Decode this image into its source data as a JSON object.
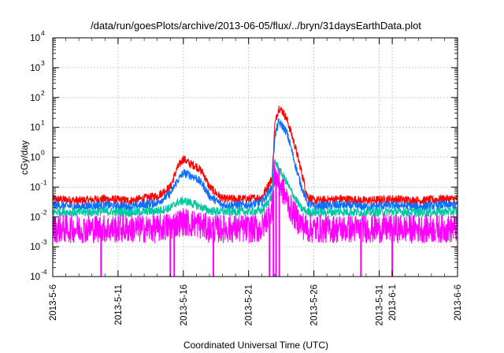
{
  "chart_data": {
    "type": "line",
    "title": "/data/run/goesPlots/archive/2013-06-05/flux/../bryn/31daysEarthData.plot",
    "xlabel": "Coordinated Universal Time (UTC)",
    "ylabel": "cGy/day",
    "y_scale": "log",
    "ylim": [
      0.0001,
      10000
    ],
    "xlim": [
      "2013-05-06",
      "2013-06-06"
    ],
    "grid": true,
    "x_ticks": [
      "2013-5-6",
      "2013-5-11",
      "2013-5-16",
      "2013-5-21",
      "2013-5-26",
      "2013-5-31",
      "2013-6-1",
      "2013-6-6"
    ],
    "y_ticks": [
      {
        "base": "10",
        "exp": "-4"
      },
      {
        "base": "10",
        "exp": "-3"
      },
      {
        "base": "10",
        "exp": "-2"
      },
      {
        "base": "10",
        "exp": "-1"
      },
      {
        "base": "10",
        "exp": "0"
      },
      {
        "base": "10",
        "exp": "1"
      },
      {
        "base": "10",
        "exp": "2"
      },
      {
        "base": "10",
        "exp": "3"
      },
      {
        "base": "10",
        "exp": "4"
      }
    ],
    "series": [
      {
        "color": "#ff0000",
        "x": [
          0,
          2,
          4,
          6,
          8,
          9,
          9.5,
          10,
          10.5,
          11,
          11.5,
          12,
          13,
          14,
          15,
          16,
          16.8,
          17.0,
          17.3,
          17.6,
          17.9,
          18.2,
          18.6,
          19.0,
          19.5,
          20,
          22,
          24,
          26,
          28,
          30,
          31
        ],
        "y": [
          0.04,
          0.035,
          0.04,
          0.035,
          0.05,
          0.1,
          0.4,
          0.9,
          0.6,
          0.5,
          0.3,
          0.1,
          0.04,
          0.04,
          0.04,
          0.045,
          0.2,
          12,
          45,
          35,
          20,
          8,
          2,
          0.4,
          0.05,
          0.035,
          0.04,
          0.035,
          0.04,
          0.035,
          0.04,
          0.04
        ]
      },
      {
        "color": "#0a6eff",
        "x": [
          0,
          2,
          4,
          6,
          8,
          9,
          9.5,
          10,
          10.5,
          11,
          11.5,
          12,
          13,
          14,
          15,
          16,
          16.8,
          17.0,
          17.3,
          17.6,
          17.9,
          18.2,
          18.6,
          19.0,
          19.5,
          20,
          22,
          24,
          26,
          28,
          30,
          31
        ],
        "y": [
          0.025,
          0.022,
          0.025,
          0.022,
          0.03,
          0.06,
          0.15,
          0.3,
          0.25,
          0.2,
          0.12,
          0.05,
          0.025,
          0.025,
          0.025,
          0.03,
          0.1,
          5,
          15,
          11,
          7,
          2.5,
          0.5,
          0.12,
          0.03,
          0.022,
          0.025,
          0.022,
          0.025,
          0.022,
          0.025,
          0.025
        ]
      },
      {
        "color": "#00c8a0",
        "x": [
          0,
          2,
          4,
          6,
          8,
          9,
          9.5,
          10,
          10.5,
          11,
          11.5,
          12,
          13,
          14,
          15,
          16,
          16.8,
          17.0,
          17.3,
          17.6,
          17.9,
          18.2,
          18.6,
          19.0,
          19.5,
          20,
          22,
          24,
          26,
          28,
          30,
          31
        ],
        "y": [
          0.015,
          0.014,
          0.015,
          0.014,
          0.016,
          0.02,
          0.03,
          0.035,
          0.03,
          0.025,
          0.02,
          0.016,
          0.015,
          0.015,
          0.015,
          0.016,
          0.05,
          0.8,
          0.4,
          0.25,
          0.15,
          0.08,
          0.04,
          0.02,
          0.015,
          0.014,
          0.015,
          0.014,
          0.015,
          0.014,
          0.015,
          0.015
        ]
      },
      {
        "color": "#ff00ff",
        "x": [
          0,
          2,
          4,
          6,
          8,
          9,
          9.5,
          10,
          10.5,
          11,
          11.5,
          12,
          13,
          14,
          15,
          16,
          16.8,
          17.0,
          17.3,
          17.6,
          17.9,
          18.2,
          18.6,
          19.0,
          19.5,
          20,
          22,
          24,
          26,
          28,
          30,
          31
        ],
        "y": [
          0.004,
          0.004,
          0.004,
          0.004,
          0.004,
          0.005,
          0.006,
          0.007,
          0.006,
          0.006,
          0.005,
          0.004,
          0.004,
          0.004,
          0.004,
          0.004,
          0.02,
          0.3,
          0.15,
          0.08,
          0.04,
          0.02,
          0.01,
          0.006,
          0.004,
          0.004,
          0.004,
          0.004,
          0.004,
          0.004,
          0.004,
          0.004
        ]
      }
    ],
    "dropouts": [
      3.7,
      9.0,
      9.3,
      12.3,
      16.6,
      16.9,
      17.1,
      17.35,
      23.6,
      26.0
    ]
  }
}
